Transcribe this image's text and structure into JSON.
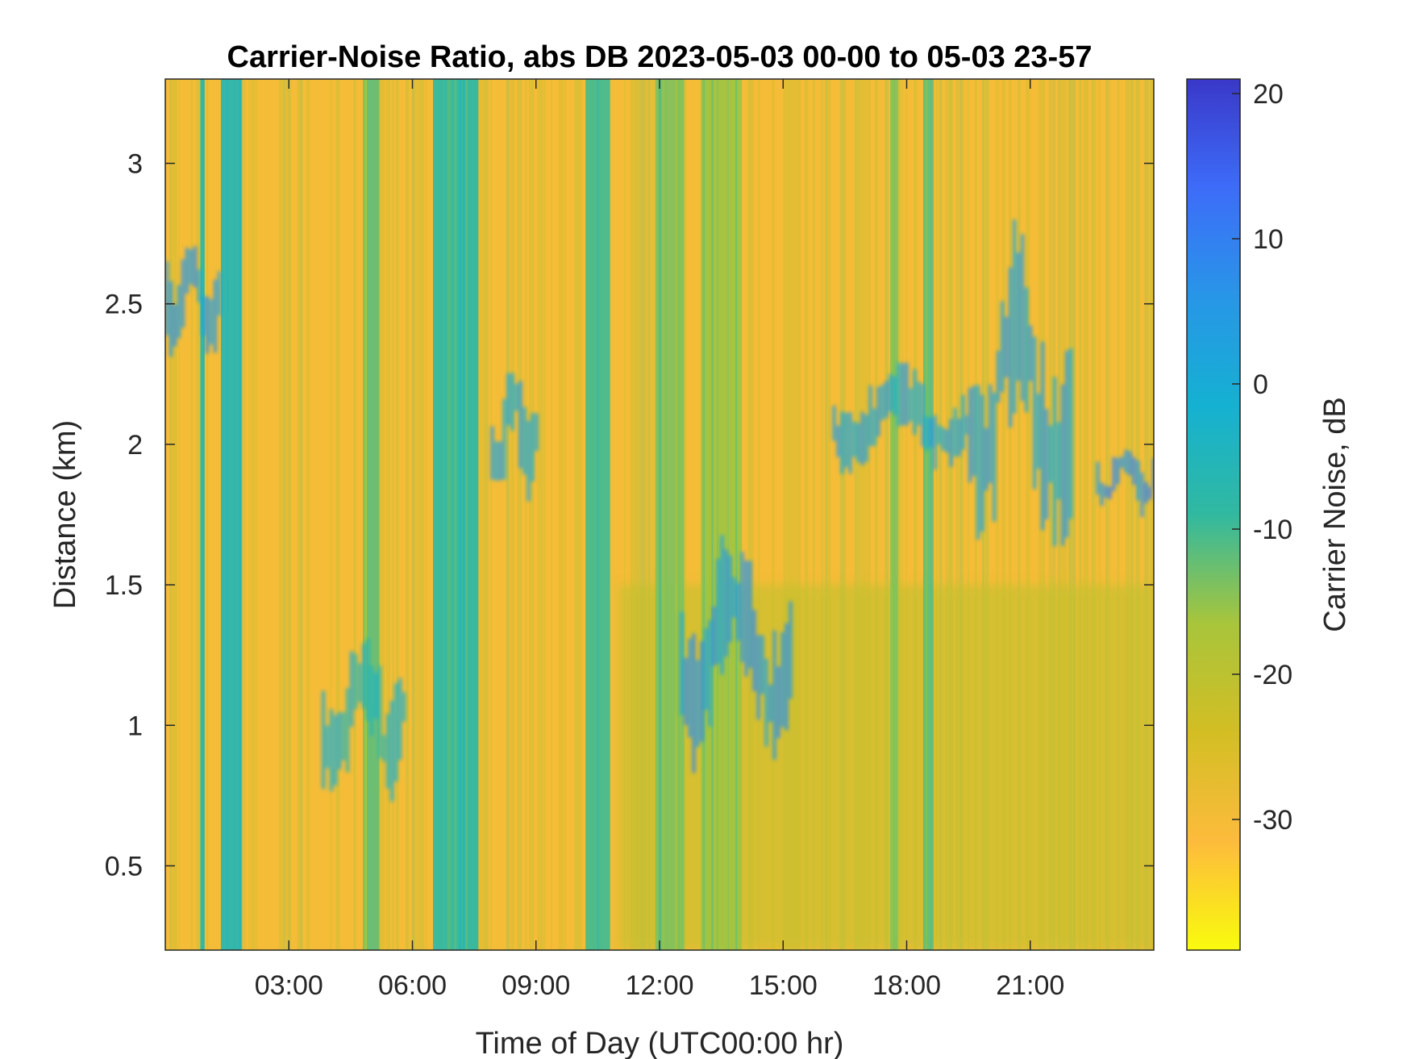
{
  "chart_data": {
    "type": "heatmap",
    "title": "Carrier-Noise Ratio, abs DB 2023-05-03 00-00 to 05-03 23-57",
    "xlabel": "Time of Day (UTC00:00 hr)",
    "ylabel": "Distance (km)",
    "colorbar_label": "Carrier Noise, dB",
    "xlim": [
      0,
      24
    ],
    "ylim": [
      0.2,
      3.3
    ],
    "clim": [
      -39,
      21
    ],
    "x_ticks": [
      3,
      6,
      9,
      12,
      15,
      18,
      21
    ],
    "x_tick_labels": [
      "03:00",
      "06:00",
      "09:00",
      "12:00",
      "15:00",
      "18:00",
      "21:00"
    ],
    "y_ticks": [
      0.5,
      1,
      1.5,
      2,
      2.5,
      3
    ],
    "y_tick_labels": [
      "0.5",
      "1",
      "1.5",
      "2",
      "2.5",
      "3"
    ],
    "colorbar_ticks": [
      -30,
      -20,
      -10,
      0,
      10,
      20
    ],
    "colorbar_tick_labels": [
      "-30",
      "-20",
      "-10",
      "0",
      "10",
      "20"
    ],
    "colormap": "parula_reversed",
    "colormap_stops": [
      "#f9fb0e",
      "#fdbb3c",
      "#d3be24",
      "#a8c53b",
      "#31b9a0",
      "#15b1d2",
      "#2896e7",
      "#3d6cf9",
      "#3a38c8"
    ],
    "background_level_db": -30,
    "features": [
      {
        "kind": "vertical_band",
        "x_start": 0.85,
        "x_end": 0.95,
        "value_db": -8
      },
      {
        "kind": "vertical_band",
        "x_start": 1.35,
        "x_end": 1.85,
        "value_db": -6
      },
      {
        "kind": "vertical_band",
        "x_start": 4.8,
        "x_end": 5.2,
        "value_db": -12
      },
      {
        "kind": "vertical_band",
        "x_start": 6.5,
        "x_end": 7.6,
        "value_db": -8
      },
      {
        "kind": "vertical_band",
        "x_start": 10.2,
        "x_end": 10.8,
        "value_db": -10
      },
      {
        "kind": "vertical_band",
        "x_start": 11.9,
        "x_end": 12.6,
        "value_db": -14
      },
      {
        "kind": "vertical_band",
        "x_start": 13.0,
        "x_end": 14.0,
        "value_db": -16
      },
      {
        "kind": "vertical_band",
        "x_start": 17.6,
        "x_end": 17.8,
        "value_db": -14
      },
      {
        "kind": "vertical_band",
        "x_start": 18.4,
        "x_end": 18.6,
        "value_db": -12
      },
      {
        "kind": "cloud_layer",
        "x_start": 0.0,
        "x_end": 1.3,
        "y_low": 2.3,
        "y_high": 2.65,
        "value_db": 5
      },
      {
        "kind": "cloud_layer",
        "x_start": 7.9,
        "x_end": 9.0,
        "y_low": 1.8,
        "y_high": 2.2,
        "value_db": 3
      },
      {
        "kind": "cloud_layer",
        "x_start": 16.2,
        "x_end": 19.5,
        "y_low": 1.9,
        "y_high": 2.2,
        "value_db": 2
      },
      {
        "kind": "cloud_layer",
        "x_start": 19.5,
        "x_end": 22.0,
        "y_low": 1.6,
        "y_high": 2.5,
        "value_db": 3
      },
      {
        "kind": "cloud_layer",
        "x_start": 22.6,
        "x_end": 24.0,
        "y_low": 1.75,
        "y_high": 1.95,
        "value_db": 8
      },
      {
        "kind": "plume",
        "x_start": 3.8,
        "x_end": 5.8,
        "y_low": 0.75,
        "y_high": 1.2,
        "value_db": -3
      },
      {
        "kind": "plume",
        "x_start": 12.5,
        "x_end": 15.2,
        "y_low": 0.85,
        "y_high": 1.5,
        "value_db": 5
      },
      {
        "kind": "boundary_layer",
        "x_start": 11.0,
        "x_end": 24.0,
        "y_low": 0.2,
        "y_high": 1.5,
        "value_db": -21
      }
    ]
  }
}
